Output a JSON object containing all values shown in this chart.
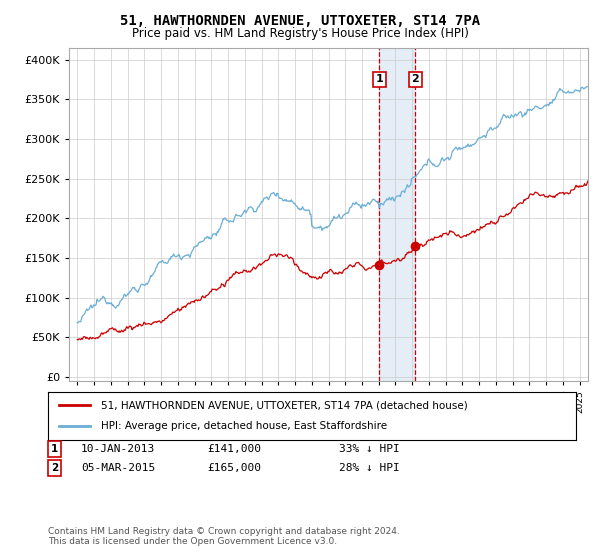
{
  "title": "51, HAWTHORNDEN AVENUE, UTTOXETER, ST14 7PA",
  "subtitle": "Price paid vs. HM Land Registry's House Price Index (HPI)",
  "legend_line1": "51, HAWTHORNDEN AVENUE, UTTOXETER, ST14 7PA (detached house)",
  "legend_line2": "HPI: Average price, detached house, East Staffordshire",
  "transactions": [
    {
      "label": "1",
      "date": "10-JAN-2013",
      "price": 141000,
      "pct": "33% ↓ HPI",
      "x_year": 2013.03
    },
    {
      "label": "2",
      "date": "05-MAR-2015",
      "price": 165000,
      "pct": "28% ↓ HPI",
      "x_year": 2015.18
    }
  ],
  "footnote": "Contains HM Land Registry data © Crown copyright and database right 2024.\nThis data is licensed under the Open Government Licence v3.0.",
  "hpi_color": "#6baed6",
  "price_color": "#cc0000",
  "vline_color": "#cc0000",
  "highlight_color": "#c6dbef",
  "yticks": [
    0,
    50000,
    100000,
    150000,
    200000,
    250000,
    300000,
    350000,
    400000
  ],
  "xlim": [
    1994.5,
    2025.5
  ],
  "ylim": [
    -5000,
    415000
  ],
  "background": "#ffffff",
  "grid_color": "#cccccc"
}
